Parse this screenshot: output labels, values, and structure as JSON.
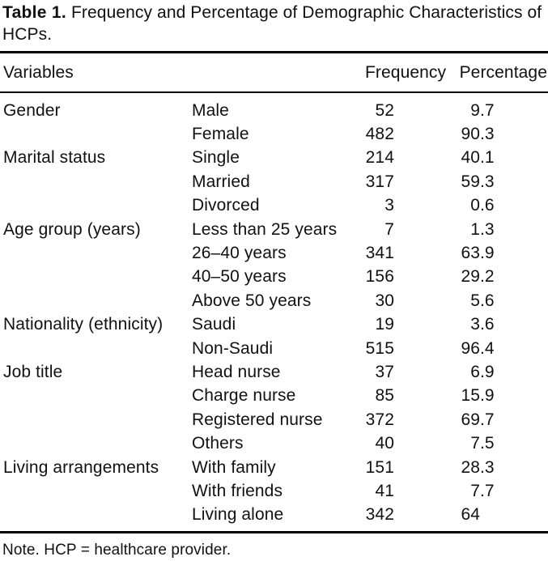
{
  "caption": {
    "label": "Table 1.",
    "text": "Frequency and Percentage of Demographic Characteristics of HCPs."
  },
  "table": {
    "headers": {
      "variables": "Variables",
      "category": "",
      "frequency": "Frequency",
      "percentage": "Percentage"
    },
    "rows": [
      {
        "variable": "Gender",
        "category": "Male",
        "frequency": "52",
        "percentage": "9.7"
      },
      {
        "variable": "",
        "category": "Female",
        "frequency": "482",
        "percentage": "90.3"
      },
      {
        "variable": "Marital status",
        "category": "Single",
        "frequency": "214",
        "percentage": "40.1"
      },
      {
        "variable": "",
        "category": "Married",
        "frequency": "317",
        "percentage": "59.3"
      },
      {
        "variable": "",
        "category": "Divorced",
        "frequency": "3",
        "percentage": "0.6"
      },
      {
        "variable": "Age group (years)",
        "category": "Less than 25 years",
        "frequency": "7",
        "percentage": "1.3"
      },
      {
        "variable": "",
        "category": "26–40 years",
        "frequency": "341",
        "percentage": "63.9"
      },
      {
        "variable": "",
        "category": "40–50 years",
        "frequency": "156",
        "percentage": "29.2"
      },
      {
        "variable": "",
        "category": "Above 50 years",
        "frequency": "30",
        "percentage": "5.6"
      },
      {
        "variable": "Nationality (ethnicity)",
        "category": "Saudi",
        "frequency": "19",
        "percentage": "3.6"
      },
      {
        "variable": "",
        "category": "Non-Saudi",
        "frequency": "515",
        "percentage": "96.4"
      },
      {
        "variable": "Job title",
        "category": "Head nurse",
        "frequency": "37",
        "percentage": "6.9"
      },
      {
        "variable": "",
        "category": "Charge nurse",
        "frequency": "85",
        "percentage": "15.9"
      },
      {
        "variable": "",
        "category": "Registered nurse",
        "frequency": "372",
        "percentage": "69.7"
      },
      {
        "variable": "",
        "category": "Others",
        "frequency": "40",
        "percentage": "7.5"
      },
      {
        "variable": "Living arrangements",
        "category": "With family",
        "frequency": "151",
        "percentage": "28.3"
      },
      {
        "variable": "",
        "category": "With friends",
        "frequency": "41",
        "percentage": "7.7"
      },
      {
        "variable": "",
        "category": "Living alone",
        "frequency": "342",
        "percentage": "64"
      }
    ],
    "note": "Note. HCP = healthcare provider."
  },
  "colors": {
    "text": "#111111",
    "rule": "#000000",
    "background": "#ffffff"
  }
}
